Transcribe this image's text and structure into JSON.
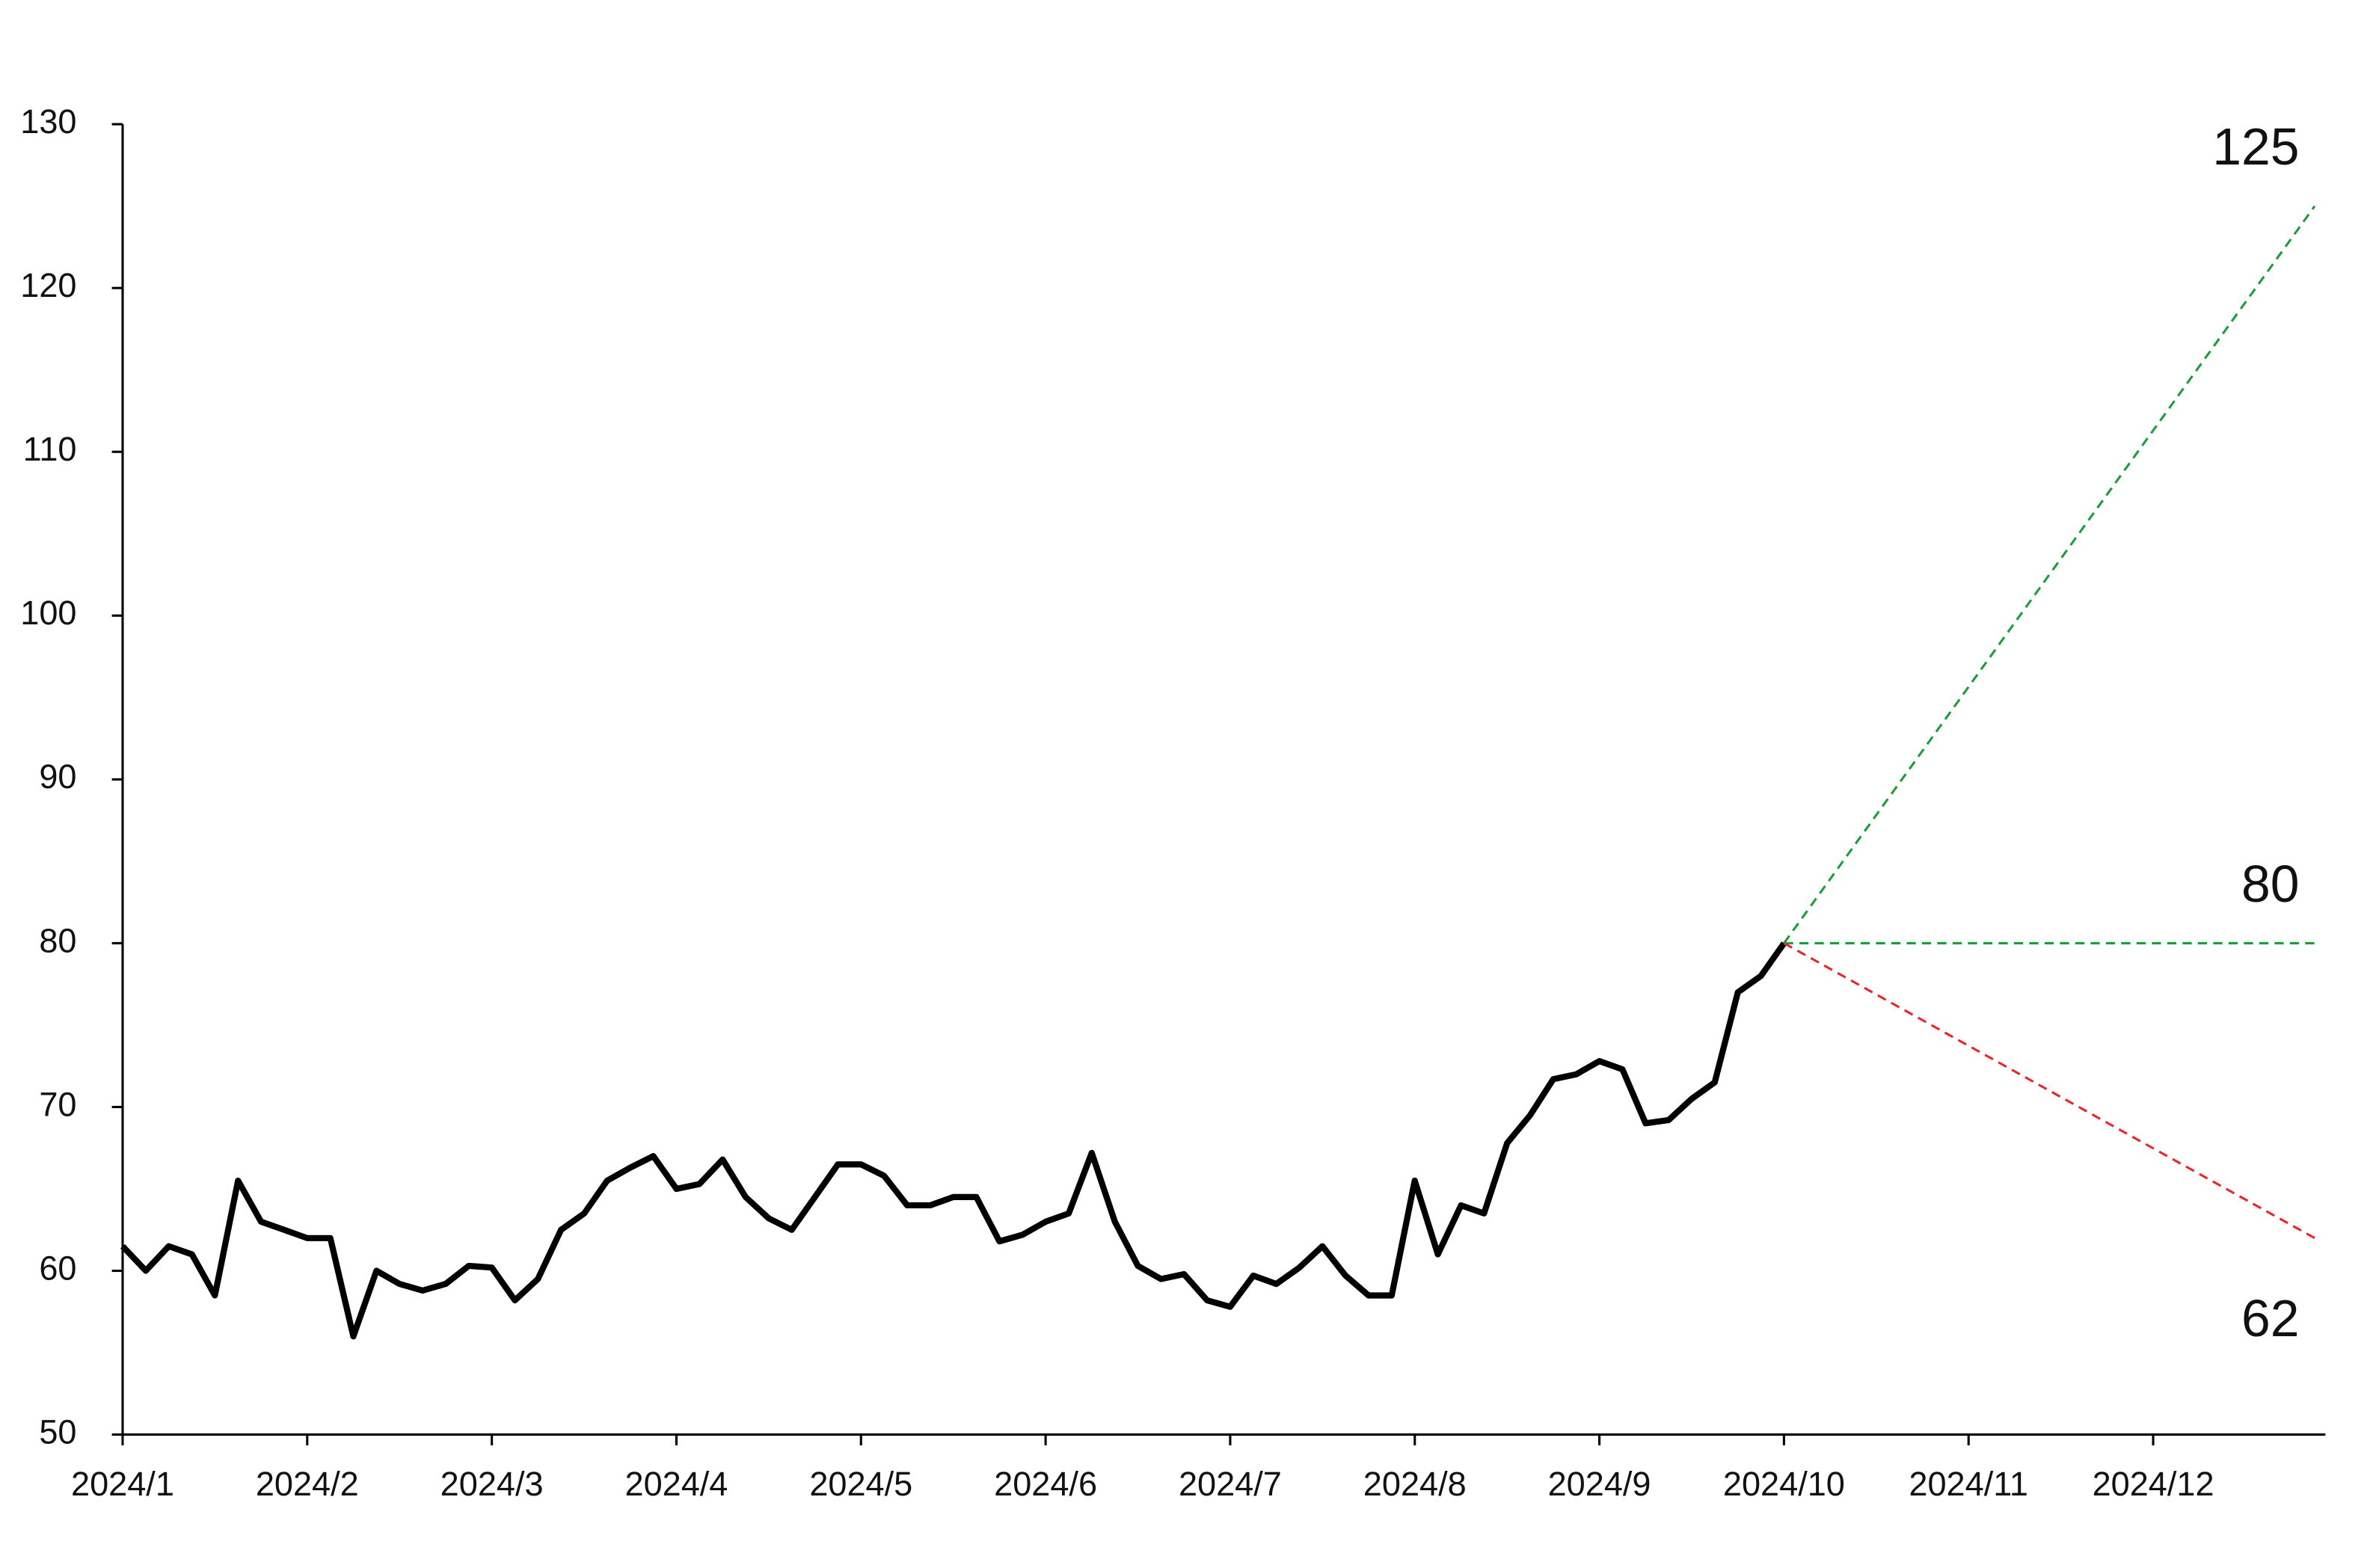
{
  "chart_data": {
    "type": "line",
    "categories": [
      "2024/1",
      null,
      null,
      null,
      null,
      null,
      null,
      null,
      "2024/2",
      null,
      null,
      null,
      null,
      null,
      null,
      null,
      "2024/3",
      null,
      null,
      null,
      null,
      null,
      null,
      null,
      "2024/4",
      null,
      null,
      null,
      null,
      null,
      null,
      null,
      "2024/5",
      null,
      null,
      null,
      null,
      null,
      null,
      null,
      "2024/6",
      null,
      null,
      null,
      null,
      null,
      null,
      null,
      "2024/7",
      null,
      null,
      null,
      null,
      null,
      null,
      null,
      "2024/8",
      null,
      null,
      null,
      null,
      null,
      null,
      null,
      "2024/9",
      null,
      null,
      null,
      null,
      null,
      null,
      null,
      "2024/10",
      null,
      null,
      null,
      null,
      null,
      null,
      null,
      "2024/11",
      null,
      null,
      null,
      null,
      null,
      null,
      null,
      "2024/12",
      null,
      null,
      null,
      null,
      null,
      null,
      null
    ],
    "series": [
      {
        "color": "#000000",
        "values": [
          61.5,
          60,
          61.5,
          61,
          58.5,
          65.5,
          63,
          62.5,
          62,
          62,
          56,
          60,
          59.2,
          58.8,
          59.2,
          60.3,
          60.2,
          58.2,
          59.5,
          62.5,
          63.5,
          65.5,
          66.3,
          67,
          65,
          65.3,
          66.8,
          64.5,
          63.2,
          62.5,
          64.5,
          66.5,
          66.5,
          65.8,
          64,
          64,
          64.5,
          64.5,
          61.8,
          62.2,
          63,
          63.5,
          67.2,
          63,
          60.3,
          59.5,
          59.8,
          58.2,
          57.8,
          59.7,
          59.2,
          60.2,
          61.5,
          59.7,
          58.5,
          58.5,
          65.5,
          61,
          64,
          63.5,
          67.8,
          69.5,
          71.7,
          72,
          72.8,
          72.3,
          69,
          69.2,
          70.5,
          71.5,
          77,
          78,
          80,
          null,
          null,
          null,
          null,
          null,
          null,
          null,
          null,
          null,
          null,
          null,
          null,
          null,
          null,
          null,
          null,
          null,
          null,
          null,
          null,
          null,
          null,
          null
        ]
      }
    ],
    "projections": [
      {
        "value": 125,
        "color": "#1a9e3a"
      },
      {
        "value": 80,
        "color": "#1a9e3a"
      },
      {
        "value": 62,
        "color": "#e8262a"
      }
    ],
    "ylim": [
      50,
      130
    ],
    "yticks": [
      50,
      60,
      70,
      80,
      90,
      100,
      110,
      120,
      130
    ],
    "grid": false
  }
}
